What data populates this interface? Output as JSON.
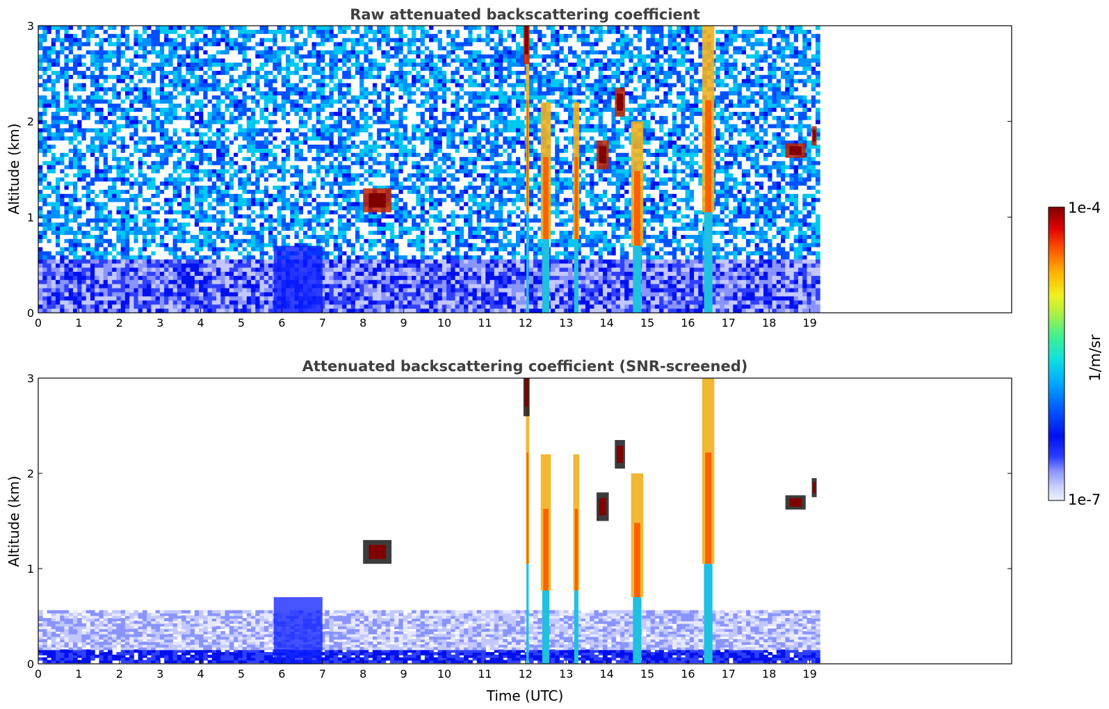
{
  "chart_data": [
    {
      "type": "heatmap",
      "title": "Raw attenuated backscattering coefficient",
      "ylabel": "Altitude (km)",
      "xlabel": "",
      "xlim": [
        0,
        24
      ],
      "ylim": [
        0,
        3
      ],
      "data_extent_hours": [
        0,
        19.25
      ],
      "x_ticks": [
        "0",
        "1",
        "2",
        "3",
        "4",
        "5",
        "6",
        "7",
        "8",
        "9",
        "10",
        "11",
        "12",
        "13",
        "14",
        "15",
        "16",
        "17",
        "18",
        "19"
      ],
      "y_ticks": [
        "0",
        "1",
        "2",
        "3"
      ],
      "screened": false,
      "features": {
        "boundary_layer_top_km": 0.55,
        "aerosol_plume": {
          "x": [
            5.8,
            7.0
          ],
          "top_km": 0.7
        },
        "precip_shafts": [
          {
            "x": 12.05,
            "top_km": 3.0,
            "w": 0.08
          },
          {
            "x": 12.5,
            "top_km": 2.2,
            "w": 0.25
          },
          {
            "x": 13.25,
            "top_km": 2.2,
            "w": 0.15
          },
          {
            "x": 14.75,
            "top_km": 2.0,
            "w": 0.3
          },
          {
            "x": 16.5,
            "top_km": 3.0,
            "w": 0.3
          }
        ],
        "cloud_patches": [
          {
            "x": 8.0,
            "y": 1.05,
            "w": 0.7,
            "h": 0.25
          },
          {
            "x": 11.95,
            "y": 2.6,
            "w": 0.15,
            "h": 0.5
          },
          {
            "x": 13.75,
            "y": 1.5,
            "w": 0.3,
            "h": 0.3
          },
          {
            "x": 14.2,
            "y": 2.05,
            "w": 0.25,
            "h": 0.3
          },
          {
            "x": 18.4,
            "y": 1.62,
            "w": 0.5,
            "h": 0.15
          },
          {
            "x": 19.05,
            "y": 1.75,
            "w": 0.12,
            "h": 0.2
          }
        ]
      }
    },
    {
      "type": "heatmap",
      "title": "Attenuated backscattering coefficient (SNR-screened)",
      "ylabel": "Altitude (km)",
      "xlabel": "Time (UTC)",
      "xlim": [
        0,
        24
      ],
      "ylim": [
        0,
        3
      ],
      "data_extent_hours": [
        0,
        19.25
      ],
      "x_ticks": [
        "0",
        "1",
        "2",
        "3",
        "4",
        "5",
        "6",
        "7",
        "8",
        "9",
        "10",
        "11",
        "12",
        "13",
        "14",
        "15",
        "16",
        "17",
        "18",
        "19"
      ],
      "y_ticks": [
        "0",
        "1",
        "2",
        "3"
      ],
      "screened": true
    }
  ],
  "colorbar": {
    "label": "1/m/sr",
    "max_label": "1e-4",
    "min_label": "1e-7",
    "scale": "log",
    "colormap": "jet-like"
  }
}
